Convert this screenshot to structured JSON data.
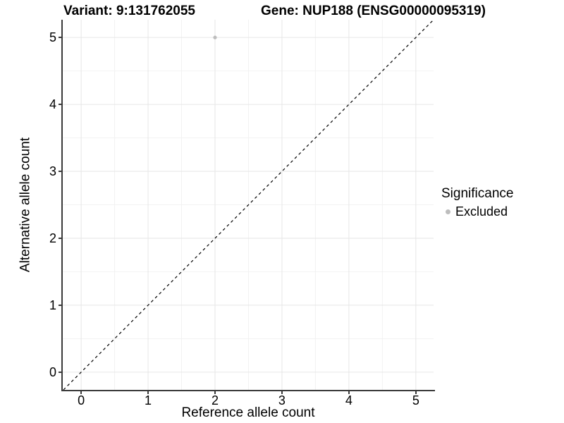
{
  "figure": {
    "background": "#ffffff",
    "title_left": "Variant: 9:131762055",
    "title_right": "Gene: NUP188 (ENSG00000095319)"
  },
  "chart_data": {
    "type": "scatter",
    "title": "Variant: 9:131762055    Gene: NUP188 (ENSG00000095319)",
    "xlabel": "Reference allele count",
    "ylabel": "Alternative allele count",
    "xlim": [
      -0.275,
      5.265
    ],
    "ylim": [
      -0.265,
      5.265
    ],
    "xticks": [
      0,
      1,
      2,
      3,
      4,
      5
    ],
    "yticks": [
      0,
      1,
      2,
      3,
      4,
      5
    ],
    "xticks_minor": [
      0.5,
      1.5,
      2.5,
      3.5,
      4.5
    ],
    "yticks_minor": [
      0.5,
      1.5,
      2.5,
      3.5,
      4.5
    ],
    "grid": "major+minor",
    "series": [
      {
        "name": "Excluded",
        "marker_color": "#bdbdbd",
        "points": [
          [
            2,
            5
          ]
        ]
      }
    ],
    "reference_line": {
      "kind": "identity y = x",
      "style": "dashed",
      "color": "#000000"
    },
    "legend": {
      "title": "Significance",
      "position": "right",
      "entries": [
        {
          "label": "Excluded",
          "color": "#bdbdbd"
        }
      ]
    }
  },
  "style": {
    "grid_major_color": "#e6e6e6",
    "grid_minor_color": "#f2f2f2",
    "axis_line_color": "#3a3a3a",
    "tick_color": "#3a3a3a",
    "point_color": "#bdbdbd",
    "text_color": "#000000"
  }
}
